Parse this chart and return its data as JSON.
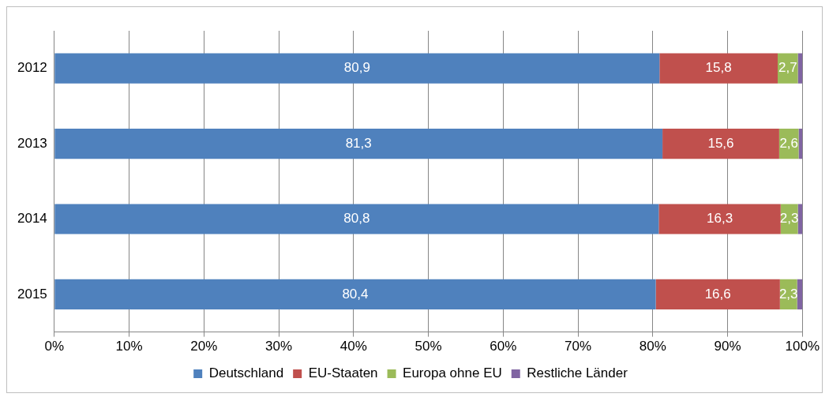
{
  "chart_data": {
    "type": "bar",
    "orientation": "horizontal",
    "stacked": true,
    "categories": [
      "2012",
      "2013",
      "2014",
      "2015"
    ],
    "series": [
      {
        "name": "Deutschland",
        "color": "#4f81bd",
        "values": [
          80.9,
          81.3,
          80.8,
          80.4
        ],
        "value_labels": [
          "80,9",
          "81,3",
          "80,8",
          "80,4"
        ]
      },
      {
        "name": "EU-Staaten",
        "color": "#c0504d",
        "values": [
          15.8,
          15.6,
          16.3,
          16.6
        ],
        "value_labels": [
          "15,8",
          "15,6",
          "16,3",
          "16,6"
        ]
      },
      {
        "name": "Europa ohne EU",
        "color": "#9bbb59",
        "values": [
          2.7,
          2.6,
          2.3,
          2.3
        ],
        "value_labels": [
          "2,7",
          "2,6",
          "2,3",
          "2,3"
        ]
      },
      {
        "name": "Restliche Länder",
        "color": "#8064a2",
        "values": [
          0.6,
          0.5,
          0.6,
          0.7
        ]
      }
    ],
    "xlim": [
      0,
      100
    ],
    "xticks": [
      {
        "value": 0,
        "label": "0%"
      },
      {
        "value": 10,
        "label": "10%"
      },
      {
        "value": 20,
        "label": "20%"
      },
      {
        "value": 30,
        "label": "30%"
      },
      {
        "value": 40,
        "label": "40%"
      },
      {
        "value": 50,
        "label": "50%"
      },
      {
        "value": 60,
        "label": "60%"
      },
      {
        "value": 70,
        "label": "70%"
      },
      {
        "value": 80,
        "label": "80%"
      },
      {
        "value": 90,
        "label": "90%"
      },
      {
        "value": 100,
        "label": "100%"
      }
    ],
    "grid": "x",
    "legend": "bottom"
  }
}
